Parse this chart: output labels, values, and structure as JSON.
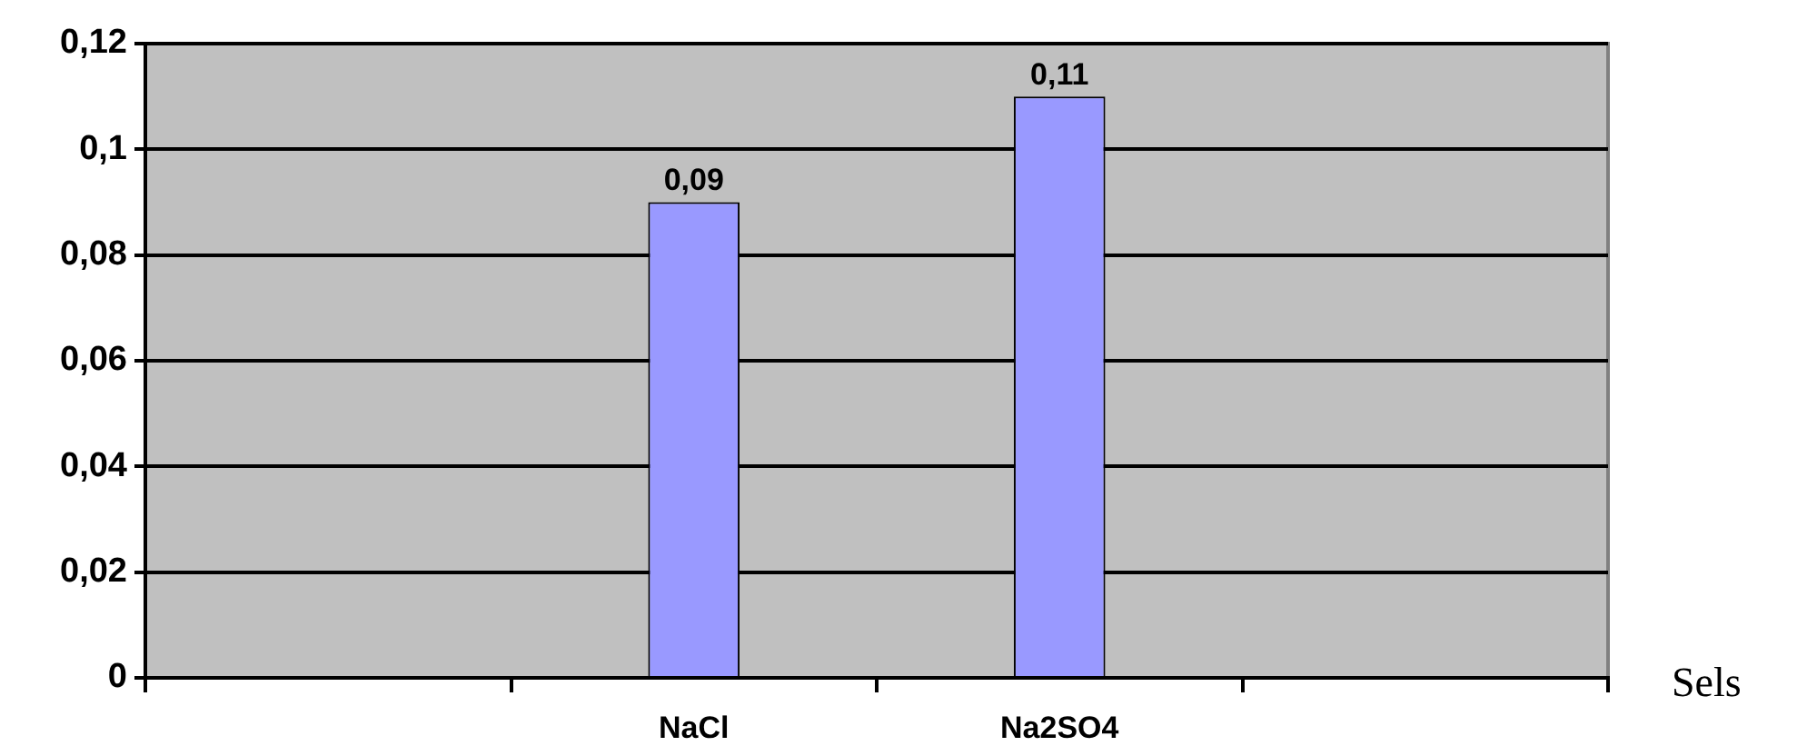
{
  "chart_data": {
    "type": "bar",
    "xlabel": "Sels",
    "categories": [
      null,
      "NaCl",
      "Na2SO4",
      null
    ],
    "values": [
      null,
      0.09,
      0.11,
      null
    ],
    "color": "#9999ff",
    "value_labels": [
      null,
      "0,09",
      "0,11",
      null
    ],
    "ylim": [
      0,
      0.12
    ],
    "yticks": [
      0,
      {
        "value": 0.02,
        "label": "0,02"
      },
      {
        "value": 0.04,
        "label": "0,04"
      },
      {
        "value": 0.06,
        "label": "0,06"
      },
      {
        "value": 0.08,
        "label": "0,08"
      },
      {
        "value": 0.1,
        "label": "0,1"
      },
      {
        "value": 0.12,
        "label": "0,12"
      }
    ],
    "grid": "y"
  }
}
